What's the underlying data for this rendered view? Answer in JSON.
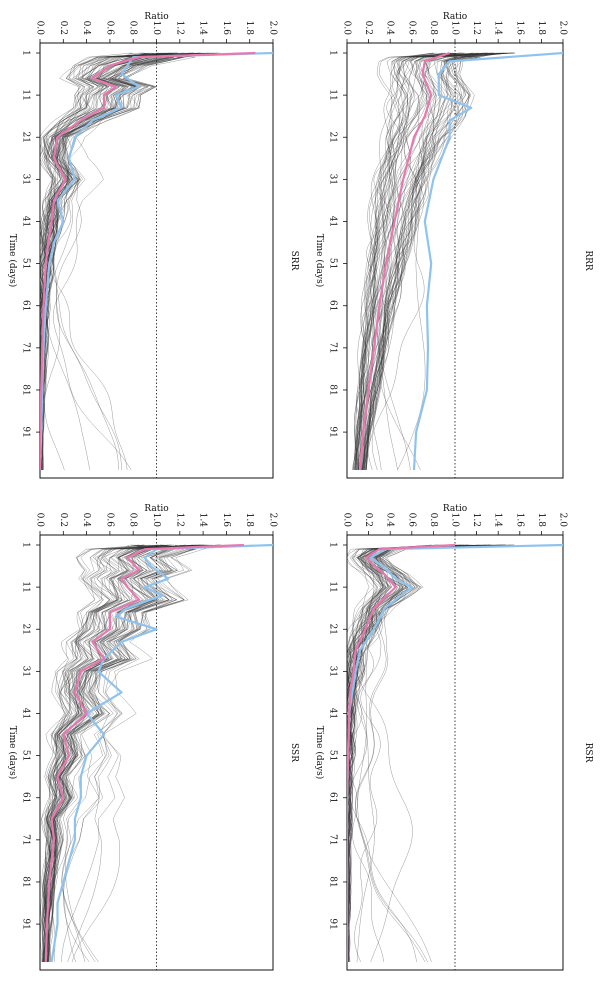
{
  "chart_data": [
    {
      "type": "line",
      "title": "RRR",
      "xlabel": "Time (days)",
      "ylabel": "Ratio",
      "xticks": [
        "1",
        "11",
        "21",
        "31",
        "41",
        "51",
        "61",
        "71",
        "81",
        "91"
      ],
      "yticks": [
        "0.0",
        "0.2",
        "0.4",
        "0.6",
        "0.8",
        "1.0",
        "1.2",
        "1.4",
        "1.6",
        "1.8",
        "2.0"
      ],
      "xlim": [
        1,
        100
      ],
      "ylim": [
        0,
        2.0
      ],
      "reference_line": 1.0,
      "colors": {
        "median": "#e879b0",
        "highlight": "#8fc3ef",
        "ensemble": "#333333"
      },
      "median": {
        "x": [
          1,
          3,
          6,
          11,
          16,
          21,
          31,
          41,
          51,
          61,
          71,
          81,
          91,
          100
        ],
        "y": [
          0.95,
          0.72,
          0.7,
          0.78,
          0.72,
          0.62,
          0.52,
          0.44,
          0.36,
          0.3,
          0.25,
          0.2,
          0.15,
          0.12
        ]
      },
      "highlight": {
        "x": [
          1,
          3,
          6,
          11,
          14,
          17,
          21,
          31,
          41,
          51,
          61,
          71,
          81,
          91,
          100
        ],
        "y": [
          2.0,
          0.95,
          0.85,
          0.85,
          1.15,
          0.95,
          0.95,
          0.8,
          0.72,
          0.78,
          0.74,
          0.75,
          0.74,
          0.64,
          0.62
        ]
      }
    },
    {
      "type": "line",
      "title": "RSR",
      "xlabel": "Time (days)",
      "ylabel": "Ratio",
      "xticks": [
        "1",
        "11",
        "21",
        "31",
        "41",
        "51",
        "61",
        "71",
        "81",
        "91"
      ],
      "yticks": [
        "0.0",
        "0.2",
        "0.4",
        "0.6",
        "0.8",
        "1.0",
        "1.2",
        "1.4",
        "1.6",
        "1.8",
        "2.0"
      ],
      "xlim": [
        1,
        100
      ],
      "ylim": [
        0,
        2.0
      ],
      "reference_line": 1.0,
      "colors": {
        "median": "#e879b0",
        "highlight": "#8fc3ef",
        "ensemble": "#333333"
      },
      "median": {
        "x": [
          1,
          2,
          4,
          6,
          8,
          11,
          16,
          21,
          26,
          31,
          36,
          41,
          51,
          61,
          71,
          81,
          91,
          100
        ],
        "y": [
          1.0,
          0.3,
          0.18,
          0.25,
          0.35,
          0.45,
          0.25,
          0.17,
          0.08,
          0.06,
          0.03,
          0.02,
          0.01,
          0.0,
          0.0,
          0.0,
          0.0,
          0.0
        ]
      },
      "highlight": {
        "x": [
          1,
          2,
          4,
          6,
          9,
          11,
          16,
          21,
          26,
          31,
          41,
          51,
          61,
          100
        ],
        "y": [
          2.0,
          0.35,
          0.22,
          0.33,
          0.45,
          0.6,
          0.35,
          0.25,
          0.12,
          0.08,
          0.02,
          0.01,
          0.0,
          0.0
        ]
      }
    },
    {
      "type": "line",
      "title": "SRR",
      "xlabel": "Time (days)",
      "ylabel": "Ratio",
      "xticks": [
        "1",
        "11",
        "21",
        "31",
        "41",
        "51",
        "61",
        "71",
        "81",
        "91"
      ],
      "yticks": [
        "0.0",
        "0.2",
        "0.4",
        "0.6",
        "0.8",
        "1.0",
        "1.2",
        "1.4",
        "1.6",
        "1.8",
        "2.0"
      ],
      "xlim": [
        1,
        100
      ],
      "ylim": [
        0,
        2.0
      ],
      "reference_line": 1.0,
      "colors": {
        "median": "#e879b0",
        "highlight": "#8fc3ef",
        "ensemble": "#333333"
      },
      "median": {
        "x": [
          1,
          2,
          4,
          7,
          9,
          11,
          14,
          17,
          21,
          26,
          31,
          36,
          41,
          46,
          51,
          61,
          71,
          81,
          91,
          100
        ],
        "y": [
          1.85,
          0.85,
          0.6,
          0.45,
          0.65,
          0.55,
          0.55,
          0.35,
          0.15,
          0.12,
          0.22,
          0.12,
          0.1,
          0.07,
          0.05,
          0.03,
          0.02,
          0.01,
          0.0,
          0.0
        ]
      },
      "highlight": {
        "x": [
          1,
          2,
          4,
          6,
          9,
          11,
          14,
          17,
          21,
          26,
          31,
          36,
          41,
          46,
          51,
          61,
          71,
          81,
          91,
          100
        ],
        "y": [
          2.0,
          0.8,
          0.75,
          0.7,
          0.85,
          0.65,
          0.7,
          0.45,
          0.3,
          0.25,
          0.3,
          0.15,
          0.2,
          0.12,
          0.08,
          0.05,
          0.03,
          0.02,
          0.01,
          0.0
        ]
      }
    },
    {
      "type": "line",
      "title": "SSR",
      "xlabel": "Time (days)",
      "ylabel": "Ratio",
      "xticks": [
        "1",
        "11",
        "21",
        "31",
        "41",
        "51",
        "61",
        "71",
        "81",
        "91"
      ],
      "yticks": [
        "0.0",
        "0.2",
        "0.4",
        "0.6",
        "0.8",
        "1.0",
        "1.2",
        "1.4",
        "1.6",
        "1.8",
        "2.0"
      ],
      "xlim": [
        1,
        100
      ],
      "ylim": [
        0,
        2.0
      ],
      "reference_line": 1.0,
      "colors": {
        "median": "#e879b0",
        "highlight": "#8fc3ef",
        "ensemble": "#333333"
      },
      "median": {
        "x": [
          1,
          2,
          4,
          7,
          9,
          11,
          14,
          17,
          21,
          24,
          28,
          31,
          36,
          41,
          46,
          51,
          56,
          61,
          66,
          71,
          81,
          91,
          100
        ],
        "y": [
          1.75,
          0.9,
          0.75,
          0.85,
          0.7,
          0.75,
          0.85,
          0.6,
          0.6,
          0.45,
          0.55,
          0.35,
          0.3,
          0.4,
          0.2,
          0.25,
          0.15,
          0.2,
          0.1,
          0.12,
          0.08,
          0.06,
          0.05
        ]
      },
      "highlight": {
        "x": [
          1,
          2,
          4,
          6,
          9,
          11,
          13,
          16,
          18,
          21,
          24,
          28,
          31,
          36,
          41,
          46,
          51,
          56,
          61,
          66,
          71,
          76,
          81,
          86,
          91,
          100
        ],
        "y": [
          2.0,
          1.0,
          0.9,
          0.95,
          1.1,
          0.9,
          1.05,
          0.75,
          0.65,
          1.0,
          0.7,
          0.55,
          0.5,
          0.7,
          0.4,
          0.55,
          0.4,
          0.35,
          0.35,
          0.3,
          0.3,
          0.25,
          0.2,
          0.15,
          0.15,
          0.1
        ]
      }
    }
  ]
}
